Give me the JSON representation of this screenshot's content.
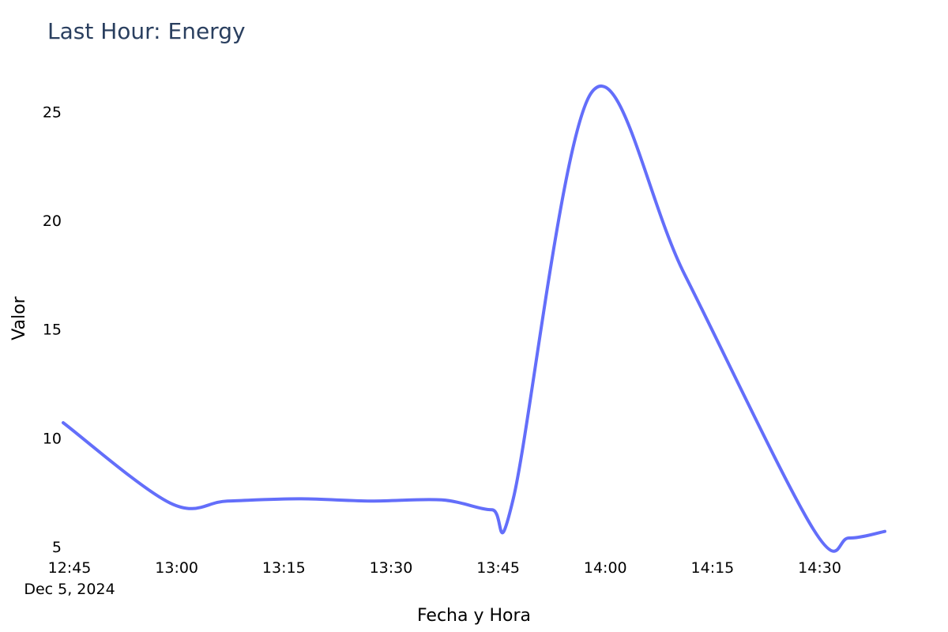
{
  "chart_data": {
    "type": "line",
    "title": "Last Hour: Energy",
    "xlabel": "Fecha y Hora",
    "ylabel": "Valor",
    "x_tick_labels": [
      "12:45",
      "13:00",
      "13:15",
      "13:30",
      "13:45",
      "14:00",
      "14:15",
      "14:30"
    ],
    "x_tick_date": "Dec 5, 2024",
    "y_tick_labels": [
      "5",
      "10",
      "15",
      "20",
      "25"
    ],
    "yticks": [
      5,
      10,
      15,
      20,
      25
    ],
    "xlim": [
      "2024-12-05 12:45",
      "2024-12-05 14:40"
    ],
    "ylim": [
      5,
      26.5
    ],
    "grid": false,
    "line_shape": "spline",
    "line_color": "#636efa",
    "series": [
      {
        "x": [
          "2024-12-05 12:45",
          "2024-12-05 13:00",
          "2024-12-05 13:08",
          "2024-12-05 13:18",
          "2024-12-05 13:28",
          "2024-12-05 13:38",
          "2024-12-05 13:45",
          "2024-12-05 13:48",
          "2024-12-05 13:59",
          "2024-12-05 14:12",
          "2024-12-05 14:30",
          "2024-12-05 14:35",
          "2024-12-05 14:40"
        ],
        "values": [
          10.7,
          7.0,
          7.1,
          7.2,
          7.1,
          7.15,
          6.7,
          7.2,
          25.9,
          17.5,
          5.8,
          5.4,
          5.7
        ]
      }
    ]
  }
}
